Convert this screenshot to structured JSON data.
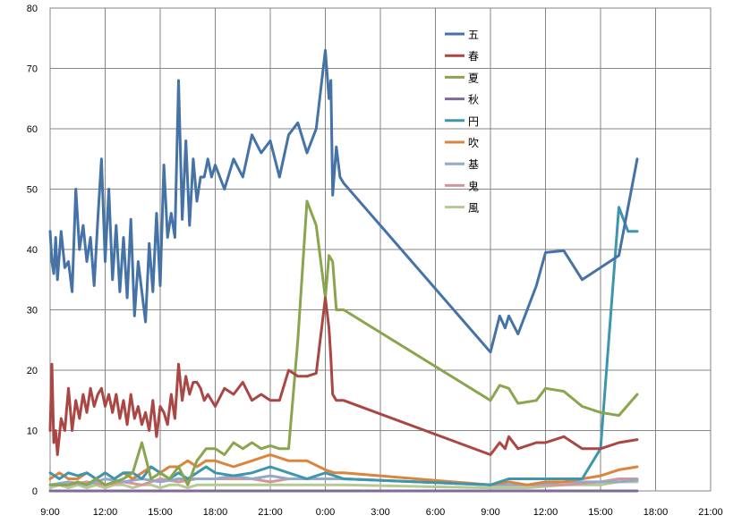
{
  "chart_data": {
    "type": "line",
    "title": "",
    "xlabel": "",
    "ylabel": "",
    "ylim": [
      0,
      80
    ],
    "yticks": [
      "0",
      "10",
      "20",
      "30",
      "40",
      "50",
      "60",
      "70",
      "80"
    ],
    "xlim_hours": [
      9,
      45
    ],
    "xticks": [
      "9:00",
      "12:00",
      "15:00",
      "18:00",
      "21:00",
      "0:00",
      "3:00",
      "6:00",
      "9:00",
      "12:00",
      "15:00",
      "18:00",
      "21:00"
    ],
    "grid": true,
    "legend_position": "top-center",
    "series": [
      {
        "name": "五",
        "color": "#4572A7",
        "x": [
          9.0,
          9.1,
          9.2,
          9.3,
          9.4,
          9.6,
          9.8,
          10.0,
          10.2,
          10.4,
          10.6,
          10.8,
          11.0,
          11.2,
          11.4,
          11.6,
          11.8,
          12.0,
          12.2,
          12.4,
          12.6,
          12.8,
          13.0,
          13.2,
          13.4,
          13.6,
          13.8,
          14.0,
          14.2,
          14.4,
          14.6,
          14.8,
          15.0,
          15.2,
          15.4,
          15.6,
          15.8,
          16.0,
          16.2,
          16.4,
          16.6,
          16.8,
          17.0,
          17.2,
          17.4,
          17.6,
          17.8,
          18.0,
          18.5,
          19.0,
          19.5,
          20.0,
          20.5,
          21.0,
          21.5,
          22.0,
          22.5,
          23.0,
          23.5,
          24.0,
          24.2,
          24.3,
          24.4,
          24.6,
          24.8,
          25.0,
          33.0,
          33.5,
          33.8,
          34.0,
          34.5,
          35.5,
          36.0,
          37.0,
          38.0,
          39.0,
          40.0,
          41.0
        ],
        "y": [
          43,
          38,
          36,
          42,
          35,
          43,
          37,
          38,
          33,
          50,
          40,
          44,
          38,
          42,
          34,
          45,
          55,
          38,
          50,
          35,
          44,
          33,
          42,
          32,
          45,
          29,
          38,
          33,
          28,
          41,
          33,
          46,
          34,
          54,
          42,
          46,
          42,
          68,
          45,
          58,
          44,
          55,
          48,
          52,
          52,
          55,
          52,
          54,
          50,
          55,
          52,
          59,
          56,
          58,
          52,
          59,
          61,
          56,
          60,
          73,
          65,
          68,
          49,
          57,
          52,
          51,
          23,
          29,
          27,
          29,
          26,
          34,
          39.5,
          39.8,
          35,
          37,
          39,
          55
        ]
      },
      {
        "name": "春",
        "color": "#AA4643",
        "x": [
          9.0,
          9.1,
          9.2,
          9.3,
          9.4,
          9.6,
          9.8,
          10.0,
          10.2,
          10.4,
          10.6,
          10.8,
          11.0,
          11.2,
          11.4,
          11.6,
          11.8,
          12.0,
          12.2,
          12.4,
          12.6,
          12.8,
          13.0,
          13.2,
          13.4,
          13.6,
          13.8,
          14.0,
          14.2,
          14.4,
          14.6,
          14.8,
          15.0,
          15.2,
          15.4,
          15.6,
          15.8,
          16.0,
          16.2,
          16.4,
          16.6,
          16.8,
          17.0,
          17.2,
          17.4,
          17.6,
          17.8,
          18.0,
          18.5,
          19.0,
          19.5,
          20.0,
          20.5,
          21.0,
          21.5,
          22.0,
          22.5,
          23.0,
          23.5,
          24.0,
          24.2,
          24.3,
          24.4,
          24.6,
          24.8,
          25.0,
          33.0,
          33.5,
          33.8,
          34.0,
          34.5,
          35.5,
          36.0,
          37.0,
          38.0,
          39.0,
          40.0,
          41.0
        ],
        "y": [
          10,
          21,
          8,
          10,
          6,
          12,
          10,
          17,
          10,
          15,
          12,
          16,
          13,
          17,
          14,
          16,
          17,
          14,
          16,
          13,
          16,
          12,
          15,
          11,
          16,
          12,
          14,
          11,
          13,
          10,
          15,
          9,
          14,
          13,
          11,
          16,
          12,
          21,
          15,
          19,
          16,
          18,
          18,
          17,
          15,
          16,
          15,
          14,
          17,
          16,
          18,
          15,
          16,
          15,
          15,
          20,
          19,
          19,
          19.5,
          32,
          27,
          22,
          16,
          15,
          15,
          15,
          6,
          8,
          7,
          9,
          7,
          8,
          8,
          9,
          7,
          7,
          8,
          8.5
        ]
      },
      {
        "name": "夏",
        "color": "#89A54E",
        "x": [
          9.0,
          9.5,
          10.0,
          10.5,
          11.0,
          11.5,
          12.0,
          12.5,
          13.0,
          13.5,
          14.0,
          14.5,
          15.0,
          15.5,
          16.0,
          16.5,
          17.0,
          17.5,
          18.0,
          18.5,
          19.0,
          19.5,
          20.0,
          20.5,
          21.0,
          21.5,
          22.0,
          22.5,
          23.0,
          23.5,
          24.0,
          24.2,
          24.4,
          24.6,
          24.8,
          25.0,
          33.0,
          33.5,
          34.0,
          34.5,
          35.5,
          36.0,
          37.0,
          38.0,
          39.0,
          40.0,
          41.0
        ],
        "y": [
          1,
          1,
          1,
          1.5,
          1,
          2,
          1,
          1.5,
          2,
          3,
          8,
          2,
          3,
          2,
          4,
          1,
          5,
          7,
          7,
          6,
          8,
          7,
          8,
          7,
          7.5,
          7,
          7,
          25,
          48,
          44,
          32,
          39,
          38,
          30,
          30,
          30,
          15,
          17.5,
          17,
          14.5,
          15,
          17,
          16.5,
          14,
          13,
          12.5,
          16
        ]
      },
      {
        "name": "秋",
        "color": "#80699B",
        "x": [
          9.0,
          12.0,
          15.0,
          18.0,
          21.0,
          24.0,
          33.0,
          36.0,
          39.0,
          41.0
        ],
        "y": [
          0,
          0,
          0,
          0,
          0,
          0,
          0,
          0,
          0,
          0
        ]
      },
      {
        "name": "円",
        "color": "#3D96AE",
        "x": [
          9.0,
          9.5,
          10.0,
          10.5,
          11.0,
          11.5,
          12.0,
          12.5,
          13.0,
          13.5,
          14.0,
          14.5,
          15.0,
          15.5,
          16.0,
          16.5,
          17.0,
          17.5,
          18.0,
          19.0,
          20.0,
          21.0,
          22.0,
          23.0,
          24.0,
          24.5,
          25.0,
          33.0,
          33.5,
          34.0,
          34.5,
          35.5,
          36.0,
          37.0,
          38.0,
          39.0,
          40.0,
          40.5,
          41.0
        ],
        "y": [
          3,
          2,
          3,
          2.5,
          3,
          2,
          3,
          2,
          3,
          3,
          2,
          4,
          3,
          2,
          3,
          2,
          3,
          4,
          3,
          2.5,
          3,
          4,
          3,
          2,
          3,
          2.5,
          2,
          1,
          1.5,
          2,
          2,
          2,
          2,
          2,
          2,
          7,
          47,
          43,
          43
        ]
      },
      {
        "name": "吹",
        "color": "#DB843D",
        "x": [
          9.0,
          9.5,
          10.0,
          10.5,
          11.0,
          11.5,
          12.0,
          12.5,
          13.0,
          13.5,
          14.0,
          14.5,
          15.0,
          15.5,
          16.0,
          16.5,
          17.0,
          17.5,
          18.0,
          19.0,
          20.0,
          21.0,
          22.0,
          23.0,
          24.0,
          24.5,
          25.0,
          33.0,
          34.0,
          35.0,
          36.0,
          37.0,
          38.0,
          39.0,
          40.0,
          41.0
        ],
        "y": [
          2,
          3,
          2,
          2,
          3,
          2,
          3,
          2,
          3,
          2,
          3,
          4,
          3,
          4,
          4,
          5,
          4,
          5,
          5,
          4,
          5,
          6,
          5,
          5,
          3.5,
          3,
          3,
          1,
          1.5,
          1,
          1.5,
          1.5,
          2,
          2.5,
          3.5,
          4
        ]
      },
      {
        "name": "基",
        "color": "#92A8CD",
        "x": [
          9.0,
          10.0,
          11.0,
          12.0,
          13.0,
          14.0,
          15.0,
          16.0,
          17.0,
          18.0,
          19.0,
          20.0,
          21.0,
          22.0,
          23.0,
          24.0,
          25.0,
          33.0,
          35.0,
          37.0,
          39.0,
          40.0,
          41.0
        ],
        "y": [
          1,
          1.5,
          1,
          2,
          1.5,
          2,
          1.5,
          2,
          2,
          2,
          2.5,
          2,
          2.5,
          2,
          2,
          2,
          2,
          1,
          1,
          1.5,
          1.5,
          1.5,
          1.8
        ]
      },
      {
        "name": "鬼",
        "color": "#D39797",
        "x": [
          9.0,
          10.0,
          11.0,
          12.0,
          13.0,
          14.0,
          15.0,
          16.0,
          17.0,
          18.0,
          19.0,
          20.0,
          21.0,
          22.0,
          23.0,
          24.0,
          25.0,
          33.0,
          35.0,
          37.0,
          39.0,
          40.0,
          41.0
        ],
        "y": [
          1,
          1,
          1.5,
          1,
          1.5,
          1,
          2,
          1.5,
          2,
          2,
          2,
          2,
          1.5,
          2,
          2,
          2,
          2,
          1,
          1,
          1,
          1.5,
          2,
          2
        ]
      },
      {
        "name": "風",
        "color": "#B5CA92",
        "x": [
          9.0,
          9.5,
          10.0,
          10.5,
          11.0,
          11.5,
          12.0,
          12.5,
          13.0,
          13.5,
          14.0,
          14.5,
          15.0,
          15.5,
          16.0,
          16.5,
          17.0,
          17.5,
          18.0,
          19.0,
          20.0,
          21.0,
          22.0,
          23.0,
          24.0,
          25.0,
          33.0,
          35.0,
          37.0,
          39.0,
          40.0,
          41.0
        ],
        "y": [
          0.5,
          1,
          0.5,
          1,
          0.5,
          1,
          0.5,
          1,
          1,
          0.5,
          1,
          1,
          0.5,
          1,
          1,
          0.5,
          1,
          1,
          1,
          1,
          1,
          1,
          1,
          1,
          1,
          1,
          0.5,
          0.5,
          1,
          1,
          1.5,
          1.5
        ]
      }
    ]
  }
}
